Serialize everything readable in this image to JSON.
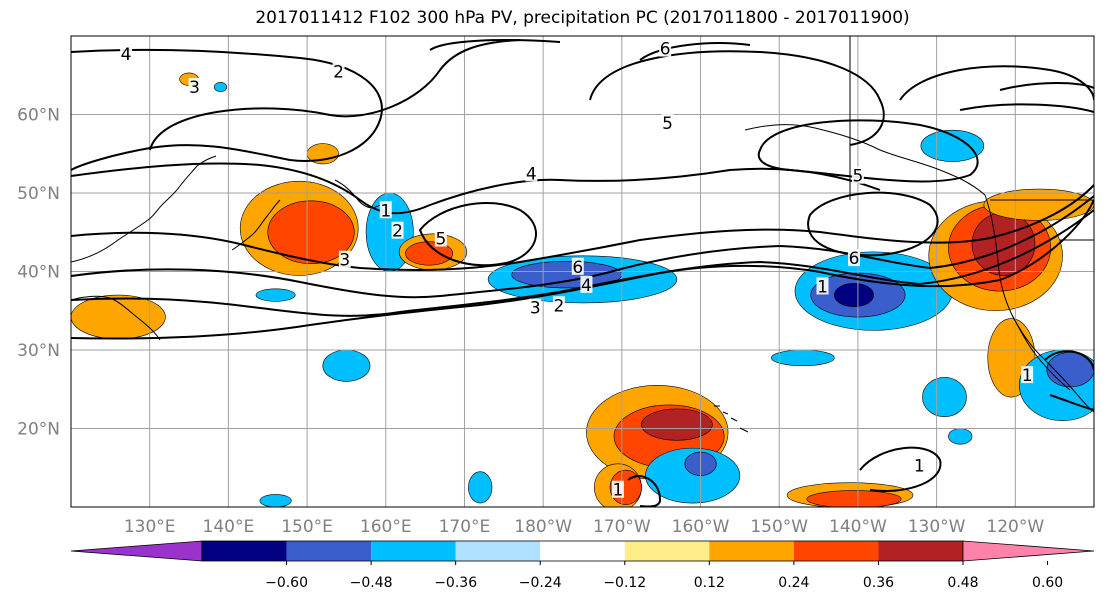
{
  "title": "2017011412 F102 300 hPa PV, precipitation PC (2017011800 - 2017011900)",
  "map": {
    "projection": "cylindrical",
    "lon_range": [
      120,
      250
    ],
    "lat_range": [
      10,
      70
    ],
    "gridlines": true,
    "lat_labels": [
      {
        "lat": 60,
        "label": "60°N"
      },
      {
        "lat": 50,
        "label": "50°N"
      },
      {
        "lat": 40,
        "label": "40°N"
      },
      {
        "lat": 30,
        "label": "30°N"
      },
      {
        "lat": 20,
        "label": "20°N"
      }
    ],
    "lon_labels": [
      {
        "lon": 130,
        "label": "130°E"
      },
      {
        "lon": 140,
        "label": "140°E"
      },
      {
        "lon": 150,
        "label": "150°E"
      },
      {
        "lon": 160,
        "label": "160°E"
      },
      {
        "lon": 170,
        "label": "170°E"
      },
      {
        "lon": 180,
        "label": "180°W"
      },
      {
        "lon": 190,
        "label": "170°W"
      },
      {
        "lon": 200,
        "label": "160°W"
      },
      {
        "lon": 210,
        "label": "150°W"
      },
      {
        "lon": 220,
        "label": "140°W"
      },
      {
        "lon": 230,
        "label": "130°W"
      },
      {
        "lon": 240,
        "label": "120°W"
      }
    ],
    "contour_labels": [
      {
        "text": "4",
        "lon": 127,
        "lat": 67.7
      },
      {
        "text": "3",
        "lon": 135.7,
        "lat": 63.5
      },
      {
        "text": "2",
        "lon": 154,
        "lat": 65.5
      },
      {
        "text": "6",
        "lon": 195.5,
        "lat": 68.4
      },
      {
        "text": "5",
        "lon": 195.8,
        "lat": 58.9
      },
      {
        "text": "4",
        "lon": 178.5,
        "lat": 52.5
      },
      {
        "text": "5",
        "lon": 220,
        "lat": 52.2
      },
      {
        "text": "6",
        "lon": 219.5,
        "lat": 41.7
      },
      {
        "text": "1",
        "lon": 160,
        "lat": 47.8
      },
      {
        "text": "2",
        "lon": 161.5,
        "lat": 45.2
      },
      {
        "text": "3",
        "lon": 154.8,
        "lat": 41.5
      },
      {
        "text": "5",
        "lon": 167,
        "lat": 44.2
      },
      {
        "text": "6",
        "lon": 184.4,
        "lat": 40.6
      },
      {
        "text": "4",
        "lon": 185.5,
        "lat": 38.3
      },
      {
        "text": "3",
        "lon": 179,
        "lat": 35.4
      },
      {
        "text": "2",
        "lon": 182,
        "lat": 35.7
      },
      {
        "text": "1",
        "lon": 215.5,
        "lat": 38.1
      },
      {
        "text": "1",
        "lon": 227.8,
        "lat": 15.3
      },
      {
        "text": "1",
        "lon": 189.5,
        "lat": 12.2
      },
      {
        "text": "1",
        "lon": 241.5,
        "lat": 26.8
      }
    ]
  },
  "colorbar": {
    "colors": [
      "#9933cc",
      "#000080",
      "#3a5fcd",
      "#00bfff",
      "#b0e2ff",
      "#ffffff",
      "#ffec8b",
      "#ffa500",
      "#ff4500",
      "#b22222",
      "#ff82ab"
    ],
    "ticks": [
      "−0.60",
      "−0.48",
      "−0.36",
      "−0.24",
      "−0.12",
      "0.12",
      "0.24",
      "0.36",
      "0.48",
      "0.60"
    ],
    "extend": "both"
  },
  "fills": [
    {
      "color": "#ffa500",
      "lon": 149,
      "lat": 45.5,
      "rx": 7.5,
      "ry": 6
    },
    {
      "color": "#ff4500",
      "lon": 150.5,
      "lat": 45,
      "rx": 5.5,
      "ry": 4
    },
    {
      "color": "#00bfff",
      "lon": 160.5,
      "lat": 45,
      "rx": 3,
      "ry": 5
    },
    {
      "color": "#ffa500",
      "lon": 152,
      "lat": 55,
      "rx": 2,
      "ry": 1.3
    },
    {
      "color": "#ffa500",
      "lon": 166,
      "lat": 42.5,
      "rx": 4.3,
      "ry": 2.3
    },
    {
      "color": "#ff4500",
      "lon": 165.5,
      "lat": 42.3,
      "rx": 3,
      "ry": 1.5
    },
    {
      "color": "#00bfff",
      "lon": 185,
      "lat": 39,
      "rx": 12,
      "ry": 3
    },
    {
      "color": "#3a5fcd",
      "lon": 183,
      "lat": 39.6,
      "rx": 7,
      "ry": 1.7
    },
    {
      "color": "#00bfff",
      "lon": 155,
      "lat": 28,
      "rx": 3,
      "ry": 2
    },
    {
      "color": "#ffa500",
      "lon": 126,
      "lat": 34.2,
      "rx": 6,
      "ry": 2.8
    },
    {
      "color": "#00bfff",
      "lon": 222,
      "lat": 37.5,
      "rx": 10,
      "ry": 5
    },
    {
      "color": "#3a5fcd",
      "lon": 220,
      "lat": 37,
      "rx": 6,
      "ry": 2.8
    },
    {
      "color": "#000080",
      "lon": 219.5,
      "lat": 37,
      "rx": 2.5,
      "ry": 1.5
    },
    {
      "color": "#00bfff",
      "lon": 232,
      "lat": 56,
      "rx": 4,
      "ry": 2
    },
    {
      "color": "#ffa500",
      "lon": 237.5,
      "lat": 42,
      "rx": 8.5,
      "ry": 7
    },
    {
      "color": "#ff4500",
      "lon": 238,
      "lat": 43,
      "rx": 6.5,
      "ry": 5.5
    },
    {
      "color": "#b22222",
      "lon": 238.5,
      "lat": 43.5,
      "rx": 4,
      "ry": 4
    },
    {
      "color": "#ffa500",
      "lon": 243,
      "lat": 48.5,
      "rx": 7,
      "ry": 2
    },
    {
      "color": "#ffa500",
      "lon": 239.5,
      "lat": 29,
      "rx": 3,
      "ry": 5
    },
    {
      "color": "#00bfff",
      "lon": 246,
      "lat": 25.5,
      "rx": 5.5,
      "ry": 4.5
    },
    {
      "color": "#3a5fcd",
      "lon": 247,
      "lat": 27.5,
      "rx": 3,
      "ry": 2.2
    },
    {
      "color": "#00bfff",
      "lon": 231,
      "lat": 24,
      "rx": 2.8,
      "ry": 2.5
    },
    {
      "color": "#00bfff",
      "lon": 233,
      "lat": 19,
      "rx": 1.5,
      "ry": 1
    },
    {
      "color": "#ffa500",
      "lon": 194.5,
      "lat": 19.5,
      "rx": 9,
      "ry": 6
    },
    {
      "color": "#ff4500",
      "lon": 196,
      "lat": 19,
      "rx": 7,
      "ry": 4
    },
    {
      "color": "#b22222",
      "lon": 197,
      "lat": 20.5,
      "rx": 4.5,
      "ry": 2
    },
    {
      "color": "#ffa500",
      "lon": 189.5,
      "lat": 12.5,
      "rx": 3,
      "ry": 3
    },
    {
      "color": "#ff4500",
      "lon": 190.5,
      "lat": 12.5,
      "rx": 2,
      "ry": 2.2
    },
    {
      "color": "#00bfff",
      "lon": 199,
      "lat": 14,
      "rx": 6,
      "ry": 3.5
    },
    {
      "color": "#3a5fcd",
      "lon": 200,
      "lat": 15.5,
      "rx": 2,
      "ry": 1.5
    },
    {
      "color": "#ffa500",
      "lon": 219,
      "lat": 11.5,
      "rx": 8,
      "ry": 1.6
    },
    {
      "color": "#ff4500",
      "lon": 219.5,
      "lat": 11,
      "rx": 6,
      "ry": 1.1
    },
    {
      "color": "#00bfff",
      "lon": 172,
      "lat": 12.5,
      "rx": 1.5,
      "ry": 2
    },
    {
      "color": "#00bfff",
      "lon": 146,
      "lat": 10.8,
      "rx": 2,
      "ry": 0.8
    },
    {
      "color": "#00bfff",
      "lon": 139,
      "lat": 63.5,
      "rx": 0.8,
      "ry": 0.6
    },
    {
      "color": "#ffa500",
      "lon": 135,
      "lat": 64.5,
      "rx": 1.2,
      "ry": 0.8
    },
    {
      "color": "#00bfff",
      "lon": 146,
      "lat": 37,
      "rx": 2.5,
      "ry": 0.8
    },
    {
      "color": "#00bfff",
      "lon": 213,
      "lat": 29,
      "rx": 4,
      "ry": 1
    }
  ]
}
